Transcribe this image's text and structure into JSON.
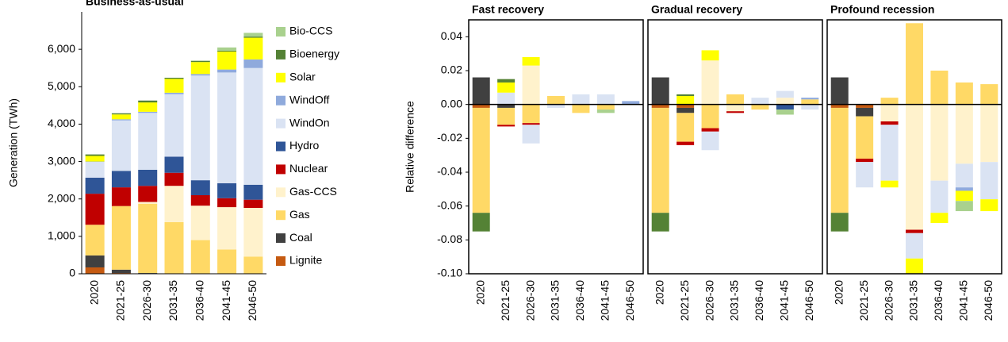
{
  "chart_data": [
    {
      "type": "bar",
      "stacked": true,
      "title": "Business-as-usual",
      "ylabel": "Generation (TWh)",
      "categories": [
        "2020",
        "2021-25",
        "2026-30",
        "2031-35",
        "2036-40",
        "2041-45",
        "2046-50"
      ],
      "ylim": [
        0,
        7000
      ],
      "yticks": [
        0,
        {
          "value": 1000,
          "label": "1,000"
        },
        {
          "value": 2000,
          "label": "2,000"
        },
        {
          "value": 3000,
          "label": "3,000"
        },
        {
          "value": 4000,
          "label": "4,000"
        },
        {
          "value": 5000,
          "label": "5,000"
        },
        {
          "value": 6000,
          "label": "6,000"
        }
      ],
      "legend": "right",
      "series": [
        {
          "name": "Lignite",
          "color": "#c55a11",
          "values": [
            170,
            20,
            0,
            0,
            0,
            0,
            0
          ]
        },
        {
          "name": "Coal",
          "color": "#404040",
          "values": [
            320,
            90,
            20,
            0,
            0,
            0,
            0
          ]
        },
        {
          "name": "Gas",
          "color": "#ffd966",
          "values": [
            820,
            1700,
            1850,
            1380,
            900,
            650,
            460
          ]
        },
        {
          "name": "Gas-CCS",
          "color": "#fff2cc",
          "values": [
            0,
            0,
            50,
            970,
            920,
            1130,
            1300
          ]
        },
        {
          "name": "Nuclear",
          "color": "#c00000",
          "values": [
            830,
            500,
            430,
            350,
            280,
            240,
            220
          ]
        },
        {
          "name": "Hydro",
          "color": "#2f5597",
          "values": [
            430,
            440,
            430,
            430,
            400,
            400,
            400
          ]
        },
        {
          "name": "WindOn",
          "color": "#dae3f3",
          "values": [
            420,
            1350,
            1520,
            1670,
            2800,
            2960,
            3120
          ]
        },
        {
          "name": "WindOff",
          "color": "#8faadc",
          "values": [
            10,
            30,
            30,
            40,
            40,
            80,
            230
          ]
        },
        {
          "name": "Solar",
          "color": "#ffff00",
          "values": [
            150,
            130,
            250,
            370,
            320,
            480,
            580
          ]
        },
        {
          "name": "Bioenergy",
          "color": "#548235",
          "values": [
            40,
            30,
            50,
            30,
            30,
            20,
            30
          ]
        },
        {
          "name": "Bio-CCS",
          "color": "#a9d18e",
          "values": [
            0,
            0,
            0,
            0,
            10,
            90,
            100
          ]
        }
      ]
    },
    {
      "type": "bar",
      "stacked": true,
      "title": "Fast recovery",
      "ylabel": "Relative difference",
      "categories": [
        "2020",
        "2021-25",
        "2026-30",
        "2031-35",
        "2036-40",
        "2041-45",
        "2046-50"
      ],
      "ylim": [
        -0.1,
        0.05
      ],
      "yticks": [
        {
          "value": -0.1,
          "label": "-0.10"
        },
        -0.08,
        -0.06,
        -0.04,
        -0.02,
        {
          "value": 0,
          "label": "0.00"
        },
        0.02,
        0.04
      ],
      "series": [
        {
          "color": "#c55a11",
          "values": [
            -0.002,
            0,
            0,
            0,
            0,
            0,
            0
          ]
        },
        {
          "color": "#404040",
          "values": [
            0.016,
            -0.002,
            0,
            0,
            0,
            0,
            0
          ]
        },
        {
          "color": "#ffd966",
          "values": [
            -0.062,
            -0.01,
            -0.011,
            0.005,
            -0.005,
            -0.003,
            0
          ]
        },
        {
          "color": "#fff2cc",
          "values": [
            0,
            0,
            0.023,
            0,
            0,
            0,
            0
          ]
        },
        {
          "color": "#c00000",
          "values": [
            0,
            -0.001,
            -0.001,
            0,
            0,
            0,
            0
          ]
        },
        {
          "color": "#2f5597",
          "values": [
            0,
            0,
            0,
            0,
            0,
            0,
            0
          ]
        },
        {
          "color": "#dae3f3",
          "values": [
            0,
            0.007,
            -0.011,
            -0.002,
            0.006,
            0.006,
            0
          ]
        },
        {
          "color": "#8faadc",
          "values": [
            0,
            0,
            0,
            0,
            0,
            0,
            0.002
          ]
        },
        {
          "color": "#ffff00",
          "values": [
            0,
            0.006,
            0.005,
            0,
            0,
            0,
            0
          ]
        },
        {
          "color": "#548235",
          "values": [
            -0.011,
            0.002,
            0,
            0,
            0,
            0,
            0
          ]
        },
        {
          "color": "#a9d18e",
          "values": [
            0,
            0,
            0,
            0,
            0,
            -0.002,
            0
          ]
        }
      ]
    },
    {
      "type": "bar",
      "stacked": true,
      "title": "Gradual recovery",
      "categories": [
        "2020",
        "2021-25",
        "2026-30",
        "2031-35",
        "2036-40",
        "2041-45",
        "2046-50"
      ],
      "ylim": [
        -0.1,
        0.05
      ],
      "series": [
        {
          "color": "#c55a11",
          "values": [
            -0.002,
            -0.002,
            0,
            0,
            0,
            0,
            0
          ]
        },
        {
          "color": "#404040",
          "values": [
            0.016,
            -0.003,
            0,
            0,
            0,
            0,
            0
          ]
        },
        {
          "color": "#ffd966",
          "values": [
            -0.062,
            -0.017,
            -0.014,
            0.006,
            -0.003,
            0,
            0.003
          ]
        },
        {
          "color": "#fff2cc",
          "values": [
            0,
            0,
            0.026,
            -0.004,
            0,
            0.004,
            0
          ]
        },
        {
          "color": "#c00000",
          "values": [
            0,
            -0.002,
            -0.002,
            -0.001,
            0,
            0,
            0
          ]
        },
        {
          "color": "#2f5597",
          "values": [
            0,
            0,
            0,
            0,
            0,
            -0.003,
            0
          ]
        },
        {
          "color": "#dae3f3",
          "values": [
            0,
            0,
            -0.011,
            0,
            0.004,
            0.004,
            -0.003
          ]
        },
        {
          "color": "#8faadc",
          "values": [
            0,
            0,
            0,
            0,
            0,
            0,
            0.001
          ]
        },
        {
          "color": "#ffff00",
          "values": [
            0,
            0.005,
            0.006,
            0,
            0,
            0,
            0
          ]
        },
        {
          "color": "#548235",
          "values": [
            -0.011,
            0.001,
            0,
            0,
            0,
            0,
            0
          ]
        },
        {
          "color": "#a9d18e",
          "values": [
            0,
            0,
            0,
            0,
            0,
            -0.003,
            0
          ]
        }
      ]
    },
    {
      "type": "bar",
      "stacked": true,
      "title": "Profound recession",
      "categories": [
        "2020",
        "2021-25",
        "2026-30",
        "2031-35",
        "2036-40",
        "2041-45",
        "2046-50"
      ],
      "ylim": [
        -0.1,
        0.05
      ],
      "series": [
        {
          "color": "#c55a11",
          "values": [
            -0.002,
            -0.002,
            0,
            0,
            0,
            0,
            0
          ]
        },
        {
          "color": "#404040",
          "values": [
            0.016,
            -0.005,
            0,
            0,
            0,
            0,
            0
          ]
        },
        {
          "color": "#ffd966",
          "values": [
            -0.062,
            -0.025,
            0.004,
            0.048,
            0.02,
            0.013,
            0.012
          ]
        },
        {
          "color": "#fff2cc",
          "values": [
            0,
            0,
            -0.01,
            -0.074,
            -0.045,
            -0.035,
            -0.034
          ]
        },
        {
          "color": "#c00000",
          "values": [
            0,
            -0.002,
            -0.002,
            -0.002,
            0,
            0,
            0
          ]
        },
        {
          "color": "#2f5597",
          "values": [
            0,
            0,
            0,
            0,
            0,
            0,
            0
          ]
        },
        {
          "color": "#dae3f3",
          "values": [
            0,
            -0.015,
            -0.033,
            -0.015,
            -0.019,
            -0.014,
            -0.022
          ]
        },
        {
          "color": "#8faadc",
          "values": [
            0,
            0,
            0,
            0,
            0,
            -0.002,
            0
          ]
        },
        {
          "color": "#ffff00",
          "values": [
            0,
            0,
            -0.004,
            -0.009,
            -0.006,
            -0.006,
            -0.007
          ]
        },
        {
          "color": "#548235",
          "values": [
            -0.011,
            0,
            0,
            0,
            0,
            0,
            0
          ]
        },
        {
          "color": "#a9d18e",
          "values": [
            0,
            0,
            0,
            0,
            0,
            -0.006,
            0
          ]
        }
      ]
    }
  ]
}
